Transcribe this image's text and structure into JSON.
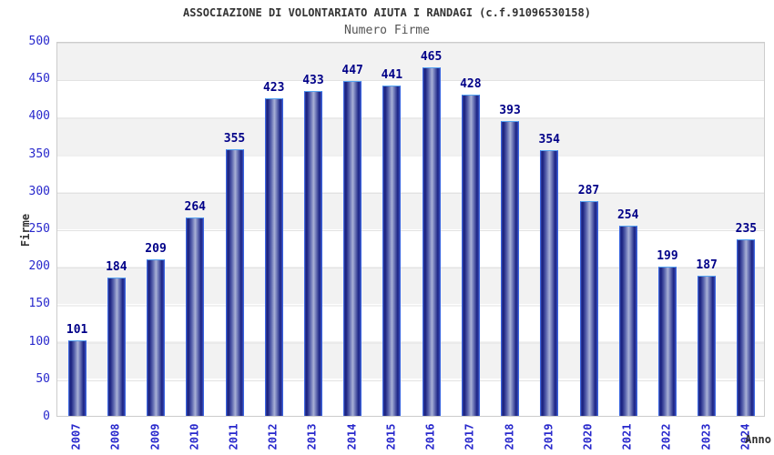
{
  "header": {
    "title": "ASSOCIAZIONE DI VOLONTARIATO AIUTA I RANDAGI (c.f.91096530158)",
    "subtitle": "Numero Firme"
  },
  "axes": {
    "y_label": "Firme",
    "x_label": "Anno"
  },
  "colors": {
    "bar_gradient_dark": "#171f7e",
    "bar_gradient_light": "#a9b1d6",
    "bar_border": "#3b66e0",
    "bar_border_top": "#55a4f2",
    "tick_label": "#2828cc",
    "value_label": "#000088",
    "band_gray": "#f2f2f2",
    "gridline": "#e2e2e2",
    "title_text": "#333333"
  },
  "chart_data": {
    "type": "bar",
    "title": "ASSOCIAZIONE DI VOLONTARIATO AIUTA I RANDAGI (c.f.91096530158)",
    "subtitle": "Numero Firme",
    "xlabel": "Anno",
    "ylabel": "Firme",
    "categories": [
      "2007",
      "2008",
      "2009",
      "2010",
      "2011",
      "2012",
      "2013",
      "2014",
      "2015",
      "2016",
      "2017",
      "2018",
      "2019",
      "2020",
      "2021",
      "2022",
      "2023",
      "2024"
    ],
    "values": [
      101,
      184,
      209,
      264,
      355,
      423,
      433,
      447,
      441,
      465,
      428,
      393,
      354,
      287,
      254,
      199,
      187,
      235
    ],
    "ylim": [
      0,
      500
    ],
    "ytick_step": 50,
    "legend": "none",
    "grid": "horizontal-bands-alternating-gray"
  }
}
